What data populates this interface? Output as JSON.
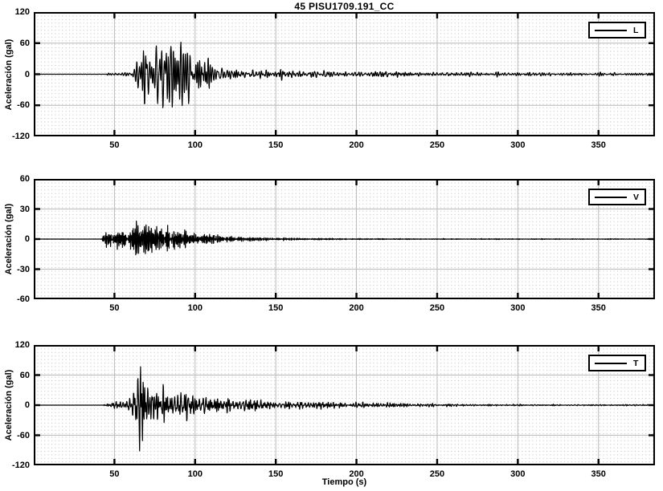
{
  "figure_title": "45 PISU1709.191_CC",
  "colors": {
    "trace": "#000000",
    "axis": "#000000",
    "grid_major": "#bababa",
    "grid_minor_dots": "#c7c7c7",
    "background": "#ffffff"
  },
  "chart_data": [
    {
      "type": "line",
      "title": "45 PISU1709.191_CC",
      "ylabel": "Aceleración (gal)",
      "xlabel": "",
      "legend": "L",
      "legend_position": "top-right",
      "xlim": [
        0,
        385
      ],
      "ylim": [
        -120,
        120
      ],
      "xticks": [
        50,
        100,
        150,
        200,
        250,
        300,
        350
      ],
      "yticks": [
        120,
        60,
        0,
        -60,
        -120
      ],
      "grid": "major solid gray, minor dotted",
      "series": [
        {
          "name": "L",
          "color": "#000000",
          "description": "Longitudinal acceleration seismogram: quiet until ~45 s, strong shaking 60-110 s peaking near +65/-100 gal around 80 s, slowly decaying coda of ~±5 gal oscillations to 385 s.",
          "synth": {
            "seed": 7,
            "components": 26,
            "dt": 0.2,
            "tmax": 385,
            "freq_band": [
              0.25,
              1.0
            ],
            "envelope_t": [
              0,
              44,
              46,
              50,
              55,
              58,
              61,
              64,
              67,
              70,
              74,
              78,
              82,
              86,
              90,
              94,
              98,
              102,
              106,
              110,
              115,
              120,
              126,
              132,
              140,
              150,
              160,
              170,
              180,
              195,
              210,
              225,
              240,
              260,
              280,
              300,
              320,
              345,
              370,
              385
            ],
            "envelope_a": [
              0.3,
              0.3,
              2,
              2.5,
              3,
              4,
              10,
              28,
              45,
              50,
              55,
              62,
              85,
              62,
              58,
              55,
              48,
              42,
              30,
              22,
              14,
              11,
              10,
              9,
              8.5,
              8,
              7.5,
              7,
              6.5,
              6,
              5.5,
              5,
              4.5,
              4,
              3.5,
              3,
              2.8,
              2.5,
              2.3,
              2.2
            ]
          }
        }
      ]
    },
    {
      "type": "line",
      "title": "",
      "ylabel": "Aceleración (gal)",
      "xlabel": "",
      "legend": "V",
      "legend_position": "top-right",
      "xlim": [
        0,
        385
      ],
      "ylim": [
        -60,
        60
      ],
      "xticks": [
        50,
        100,
        150,
        200,
        250,
        300,
        350
      ],
      "yticks": [
        60,
        30,
        0,
        -30,
        -60
      ],
      "grid": "major solid gray, minor dotted",
      "series": [
        {
          "name": "V",
          "color": "#000000",
          "description": "Vertical acceleration: dense high-frequency burst 43-110 s peaking near ±25-30 gal around 62-72 s, decaying to a nearly flat trace of <±1 gal after ~180 s.",
          "synth": {
            "seed": 13,
            "components": 26,
            "dt": 0.2,
            "tmax": 385,
            "freq_band": [
              0.8,
              2.2
            ],
            "envelope_t": [
              0,
              42,
              43,
              45,
              48,
              52,
              56,
              60,
              62,
              64,
              66,
              69,
              72,
              76,
              80,
              84,
              88,
              92,
              96,
              100,
              105,
              110,
              115,
              120,
              126,
              132,
              138,
              144,
              150,
              158,
              166,
              174,
              182,
              195,
              210,
              230,
              260,
              300,
              350,
              385
            ],
            "envelope_a": [
              0.2,
              0.2,
              4,
              7,
              9,
              10,
              11,
              13,
              26,
              16,
              14,
              15,
              21,
              15,
              13,
              14,
              10,
              9,
              8,
              7,
              5.5,
              4.5,
              3.5,
              3,
              2.6,
              3,
              2.2,
              1.5,
              1.2,
              1.5,
              1.0,
              0.8,
              0.7,
              0.6,
              0.55,
              0.5,
              0.45,
              0.4,
              0.35,
              0.3
            ]
          }
        }
      ]
    },
    {
      "type": "line",
      "title": "",
      "ylabel": "Aceleración (gal)",
      "xlabel": "Tiempo (s)",
      "legend": "T",
      "legend_position": "top-right",
      "xlim": [
        0,
        385
      ],
      "ylim": [
        -120,
        120
      ],
      "xticks": [
        50,
        100,
        150,
        200,
        250,
        300,
        350
      ],
      "yticks": [
        120,
        60,
        0,
        -60,
        -120
      ],
      "grid": "major solid gray, minor dotted",
      "series": [
        {
          "name": "T",
          "color": "#000000",
          "description": "Transverse acceleration: sharp burst starting ~58 s peaking near +70/-100 gal around 62-70 s, irregular decay with ±10-15 gal pulses to ~150 s and small ripples fading out by ~300 s.",
          "synth": {
            "seed": 21,
            "components": 26,
            "dt": 0.2,
            "tmax": 385,
            "freq_band": [
              0.35,
              1.3
            ],
            "envelope_t": [
              0,
              43,
              44,
              47,
              50,
              54,
              57,
              60,
              62,
              64,
              66,
              68,
              70,
              73,
              76,
              79,
              82,
              86,
              90,
              94,
              98,
              102,
              106,
              110,
              115,
              120,
              125,
              130,
              135,
              140,
              146,
              152,
              158,
              165,
              172,
              180,
              190,
              200,
              212,
              224,
              236,
              250,
              265,
              280,
              300,
              320,
              345,
              370,
              385
            ],
            "envelope_a": [
              0.2,
              0.2,
              3,
              5,
              6,
              6,
              7,
              20,
              45,
              60,
              80,
              70,
              55,
              50,
              40,
              32,
              28,
              26,
              24,
              27,
              22,
              20,
              17,
              15,
              13,
              14,
              10,
              12,
              9,
              12,
              8,
              10,
              7,
              8,
              6,
              6,
              5,
              5,
              4.5,
              4,
              3.5,
              3,
              2.5,
              2,
              1.8,
              1.5,
              1.3,
              1.2,
              1.1
            ]
          }
        }
      ]
    }
  ]
}
